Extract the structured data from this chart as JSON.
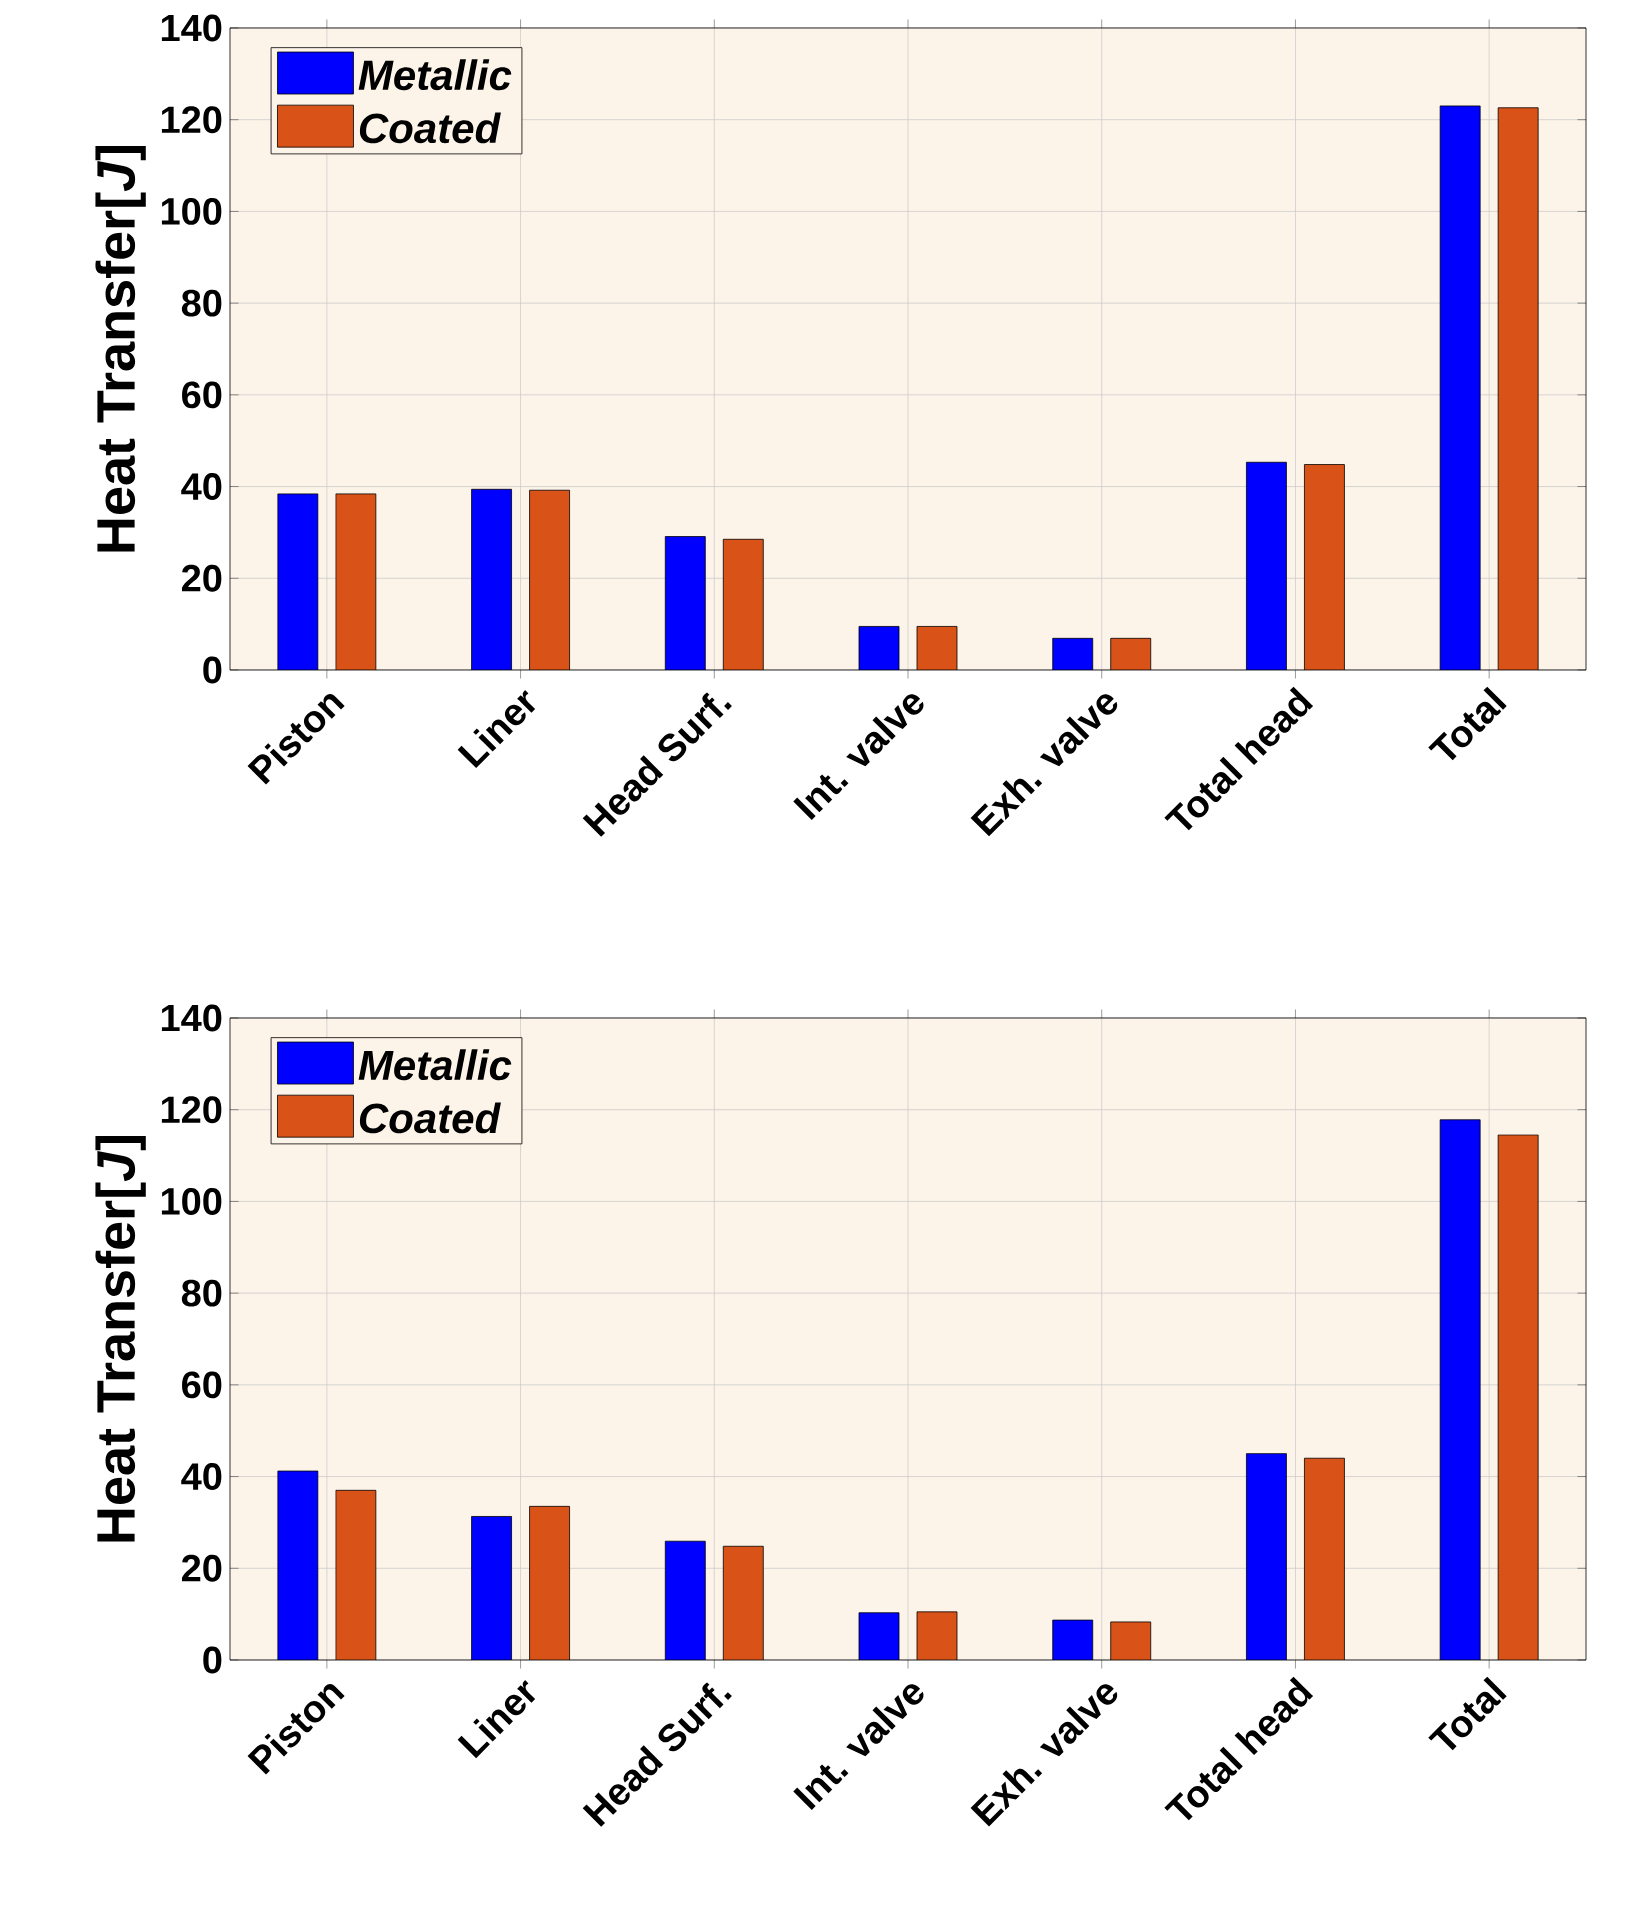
{
  "chart_data": [
    {
      "type": "bar",
      "ylabel": "Heat Transfer[*J*]",
      "categories": [
        "Piston",
        "Liner",
        "Head Surf.",
        "Int. valve",
        "Exh. valve",
        "Total head",
        "Total"
      ],
      "series": [
        {
          "name": "Metallic",
          "color": "#0000ff",
          "values": [
            38.4,
            39.4,
            29.1,
            9.5,
            6.9,
            45.3,
            123.0
          ]
        },
        {
          "name": "Coated",
          "color": "#d95319",
          "values": [
            38.4,
            39.2,
            28.5,
            9.5,
            6.9,
            44.8,
            122.6
          ]
        }
      ],
      "ylim": [
        0,
        140
      ],
      "yticks": [
        0,
        20,
        40,
        60,
        80,
        100,
        120,
        140
      ],
      "grid": true,
      "legend": "top left"
    },
    {
      "type": "bar",
      "ylabel": "Heat Transfer[*J*]",
      "categories": [
        "Piston",
        "Liner",
        "Head Surf.",
        "Int. valve",
        "Exh. valve",
        "Total head",
        "Total"
      ],
      "series": [
        {
          "name": "Metallic",
          "color": "#0000ff",
          "values": [
            41.2,
            31.3,
            25.9,
            10.3,
            8.7,
            45.0,
            117.8
          ]
        },
        {
          "name": "Coated",
          "color": "#d95319",
          "values": [
            37.0,
            33.5,
            24.8,
            10.5,
            8.3,
            44.0,
            114.5
          ]
        }
      ],
      "ylim": [
        0,
        140
      ],
      "yticks": [
        0,
        20,
        40,
        60,
        80,
        100,
        120,
        140
      ],
      "grid": true,
      "legend": "top left"
    }
  ]
}
